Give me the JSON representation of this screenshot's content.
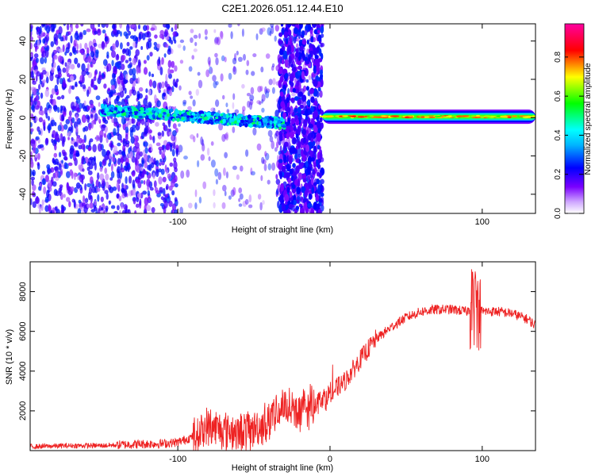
{
  "figure_title": "C2E1.2026.051.12.44.E10",
  "chart_data": [
    {
      "type": "heatmap",
      "title": "C2E1.2026.051.12.44.E10",
      "xlabel": "Height of straight line (km)",
      "ylabel": "Frequency (Hz)",
      "xlim": [
        -197,
        135
      ],
      "ylim": [
        -50,
        49
      ],
      "xticks": [
        -100,
        0,
        100
      ],
      "xtick_labels": [
        "-100",
        "",
        "100"
      ],
      "yticks": [
        -40,
        -20,
        0,
        20,
        40
      ],
      "ytick_labels": [
        "-40",
        "-20",
        "0",
        "20",
        "40"
      ],
      "colorbar": {
        "label": "Normalized spectral amplitude",
        "range": [
          0,
          0.97
        ],
        "ticks": [
          0.0,
          0.2,
          0.4,
          0.6,
          0.8
        ],
        "tick_labels": [
          "0.0",
          "0.2",
          "0.4",
          "0.6",
          "0.8"
        ],
        "colormap": [
          "#ffffff",
          "#7a00ff",
          "#0000ff",
          "#00ffff",
          "#00ff00",
          "#ffff00",
          "#ff0000",
          "#ff00a0"
        ]
      },
      "features": {
        "noise_region_x": [
          -197,
          -5
        ],
        "gap_region_x": [
          -100,
          -35
        ],
        "band_segment_1": {
          "x": [
            -150,
            -30
          ],
          "freq_start": 4,
          "freq_end": -3,
          "amplitude": 0.35
        },
        "vertical_burst_x": [
          -33,
          -5
        ],
        "band_segment_2": {
          "x": [
            -5,
            135
          ],
          "freq": 0.5,
          "amplitude": 0.8
        }
      }
    },
    {
      "type": "line",
      "xlabel": "Height of straight line (km)",
      "ylabel": "SNR (10 * v/v)",
      "xlim": [
        -197,
        135
      ],
      "ylim": [
        0,
        9500
      ],
      "xticks": [
        -100,
        0,
        100
      ],
      "xtick_labels": [
        "-100",
        "0",
        "100"
      ],
      "yticks": [
        2000,
        4000,
        6000,
        8000
      ],
      "ytick_labels": [
        "2000",
        "4000",
        "6000",
        "8000"
      ],
      "series": [
        {
          "name": "SNR",
          "color": "#ee2222",
          "x": [
            -197,
            -170,
            -150,
            -130,
            -110,
            -100,
            -90,
            -80,
            -70,
            -60,
            -50,
            -40,
            -30,
            -20,
            -10,
            0,
            10,
            20,
            30,
            40,
            50,
            60,
            70,
            80,
            90,
            95,
            100,
            110,
            120,
            130,
            135
          ],
          "values": [
            200,
            250,
            250,
            320,
            350,
            420,
            700,
            1200,
            1100,
            900,
            1100,
            1500,
            2300,
            1900,
            2400,
            2900,
            3500,
            4600,
            5600,
            6200,
            6700,
            7000,
            7100,
            7100,
            7000,
            7300,
            7000,
            7000,
            6900,
            6600,
            6300
          ]
        }
      ]
    }
  ]
}
